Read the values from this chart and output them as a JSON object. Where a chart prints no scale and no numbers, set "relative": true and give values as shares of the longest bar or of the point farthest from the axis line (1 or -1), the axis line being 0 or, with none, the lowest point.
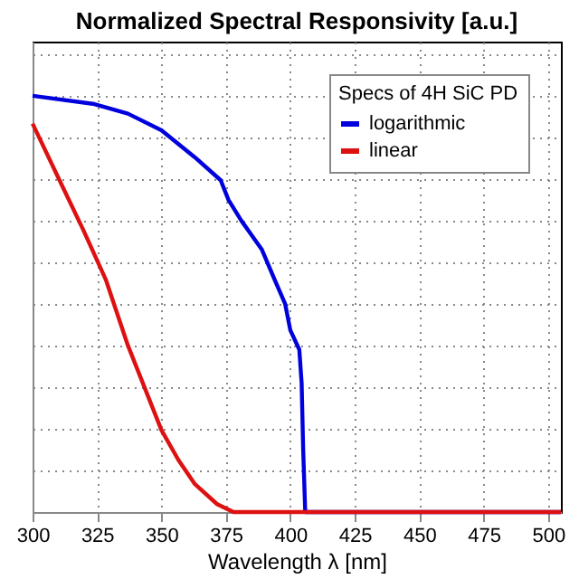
{
  "chart_data": {
    "type": "line",
    "title": "Normalized Spectral Responsivity [a.u.]",
    "xlabel": "Wavelength λ [nm]",
    "legend_title": "Specs of 4H SiC PD",
    "relative": true,
    "xlim": [
      300,
      505
    ],
    "xticks": [
      300,
      325,
      350,
      375,
      400,
      425,
      450,
      475,
      500
    ],
    "grid": true,
    "legend": "top right",
    "marker": "none",
    "line_style": "solid",
    "series": [
      {
        "name": "logarithmic",
        "color": "#0000dd",
        "x": [
          300,
          324,
          337,
          350,
          363,
          373,
          376,
          381,
          389,
          394,
          398,
          400,
          403.5,
          404.4,
          405,
          405.8,
          505
        ],
        "values": [
          1,
          0.98,
          0.957,
          0.917,
          0.852,
          0.797,
          0.75,
          0.7,
          0.63,
          0.557,
          0.5,
          0.437,
          0.39,
          0.31,
          0.15,
          0,
          0
        ]
      },
      {
        "name": "linear",
        "color": "#dd1111",
        "x": [
          300,
          311,
          319.5,
          328.5,
          337,
          350,
          356.6,
          363,
          371.6,
          378,
          505
        ],
        "values": [
          0.933,
          0.79,
          0.68,
          0.557,
          0.4,
          0.197,
          0.125,
          0.067,
          0.019,
          0,
          0
        ]
      }
    ]
  }
}
